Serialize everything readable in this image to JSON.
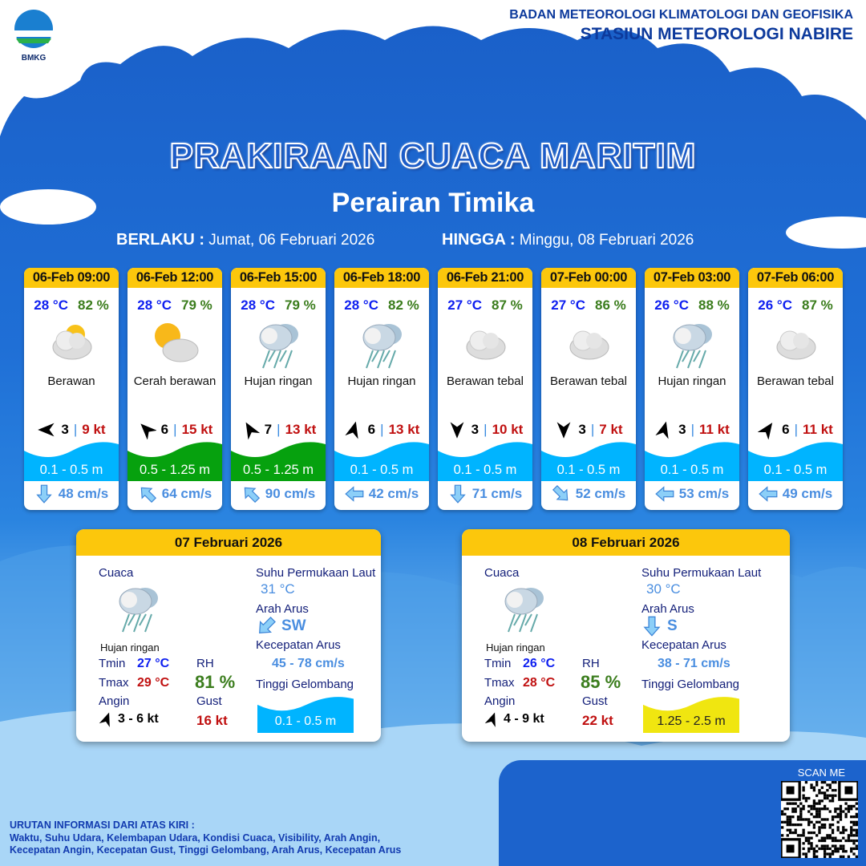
{
  "header": {
    "agency": "BADAN METEOROLOGI KLIMATOLOGI DAN GEOFISIKA",
    "station": "STASIUN METEOROLOGI NABIRE",
    "logo_text": "BMKG"
  },
  "title": "PRAKIRAAN CUACA MARITIM",
  "subtitle": "Perairan Timika",
  "validity": {
    "from_label": "BERLAKU :",
    "from": "Jumat, 06 Februari 2026",
    "to_label": "HINGGA :",
    "to": "Minggu, 08 Februari 2026"
  },
  "colors": {
    "header_yellow": "#fcc70c",
    "temp_blue": "#0e1ff0",
    "rh_green": "#3b7d1d",
    "gust_red": "#c01010",
    "wave_low": "#00b4ff",
    "wave_mid": "#06a10e",
    "wave_high": "#f0e610",
    "current_blue": "#4a8ee0"
  },
  "forecasts": [
    {
      "time": "06-Feb 09:00",
      "temp": "28 °C",
      "rh": "82 %",
      "icon": "partly-cloudy-sun-icon",
      "condition": "Berawan",
      "wind_dir_deg": 270,
      "wind": "3",
      "gust": "9 kt",
      "wave": "0.1 - 0.5 m",
      "wave_level": "low",
      "current_dir_deg": 180,
      "current": "48 cm/s"
    },
    {
      "time": "06-Feb 12:00",
      "temp": "28 °C",
      "rh": "79 %",
      "icon": "sun-cloud-icon",
      "condition": "Cerah berawan",
      "wind_dir_deg": 315,
      "wind": "6",
      "gust": "15 kt",
      "wave": "0.5 - 1.25 m",
      "wave_level": "mid",
      "current_dir_deg": 315,
      "current": "64 cm/s"
    },
    {
      "time": "06-Feb 15:00",
      "temp": "28 °C",
      "rh": "79 %",
      "icon": "rain-cloud-icon",
      "condition": "Hujan ringan",
      "wind_dir_deg": 330,
      "wind": "7",
      "gust": "13 kt",
      "wave": "0.5 - 1.25 m",
      "wave_level": "mid",
      "current_dir_deg": 315,
      "current": "90 cm/s"
    },
    {
      "time": "06-Feb 18:00",
      "temp": "28 °C",
      "rh": "82 %",
      "icon": "rain-cloud-icon",
      "condition": "Hujan ringan",
      "wind_dir_deg": 15,
      "wind": "6",
      "gust": "13 kt",
      "wave": "0.1 - 0.5 m",
      "wave_level": "low",
      "current_dir_deg": 270,
      "current": "42 cm/s"
    },
    {
      "time": "06-Feb 21:00",
      "temp": "27 °C",
      "rh": "87 %",
      "icon": "cloud-icon",
      "condition": "Berawan tebal",
      "wind_dir_deg": 180,
      "wind": "3",
      "gust": "10 kt",
      "wave": "0.1 - 0.5 m",
      "wave_level": "low",
      "current_dir_deg": 180,
      "current": "71 cm/s"
    },
    {
      "time": "07-Feb 00:00",
      "temp": "27 °C",
      "rh": "86 %",
      "icon": "cloud-icon",
      "condition": "Berawan tebal",
      "wind_dir_deg": 180,
      "wind": "3",
      "gust": "7 kt",
      "wave": "0.1 - 0.5 m",
      "wave_level": "low",
      "current_dir_deg": 135,
      "current": "52 cm/s"
    },
    {
      "time": "07-Feb 03:00",
      "temp": "26 °C",
      "rh": "88 %",
      "icon": "rain-cloud-icon",
      "condition": "Hujan ringan",
      "wind_dir_deg": 15,
      "wind": "3",
      "gust": "11 kt",
      "wave": "0.1 - 0.5 m",
      "wave_level": "low",
      "current_dir_deg": 270,
      "current": "53 cm/s"
    },
    {
      "time": "07-Feb 06:00",
      "temp": "26 °C",
      "rh": "87 %",
      "icon": "cloud-icon",
      "condition": "Berawan tebal",
      "wind_dir_deg": 35,
      "wind": "6",
      "gust": "11 kt",
      "wave": "0.1 - 0.5 m",
      "wave_level": "low",
      "current_dir_deg": 270,
      "current": "49 cm/s"
    }
  ],
  "labels": {
    "weather": "Cuaca",
    "sst": "Suhu Permukaan Laut",
    "current_dir": "Arah Arus",
    "current_speed": "Kecepatan Arus",
    "wave": "Tinggi Gelombang",
    "tmin": "Tmin",
    "tmax": "Tmax",
    "rh": "RH",
    "wind": "Angin",
    "gust": "Gust"
  },
  "daily": [
    {
      "date": "07 Februari 2026",
      "condition": "Hujan ringan",
      "tmin": "27 °C",
      "tmax": "29 °C",
      "rh": "81 %",
      "wind": "3  - 6 kt",
      "wind_dir_deg": 20,
      "gust": "16 kt",
      "sst": "31 °C",
      "current_dir": "SW",
      "current_dir_deg": 225,
      "current_speed": "45 - 78 cm/s",
      "wave": "0.1 - 0.5 m",
      "wave_level": "low"
    },
    {
      "date": "08 Februari 2026",
      "condition": "Hujan ringan",
      "tmin": "26 °C",
      "tmax": "28 °C",
      "rh": "85 %",
      "wind": "4  - 9 kt",
      "wind_dir_deg": 20,
      "gust": "22 kt",
      "sst": "30 °C",
      "current_dir": "S",
      "current_dir_deg": 180,
      "current_speed": "38 - 71 cm/s",
      "wave": "1.25 - 2.5 m",
      "wave_level": "high"
    }
  ],
  "qr": {
    "label": "SCAN ME"
  },
  "footer": {
    "line1": "URUTAN INFORMASI DARI ATAS KIRI :",
    "line2": "Waktu, Suhu Udara, Kelembapan Udara, Kondisi Cuaca, Visibility, Arah Angin,",
    "line3": "Kecepatan Angin, Kecepatan Gust, Tinggi Gelombang, Arah Arus, Kecepatan Arus"
  }
}
